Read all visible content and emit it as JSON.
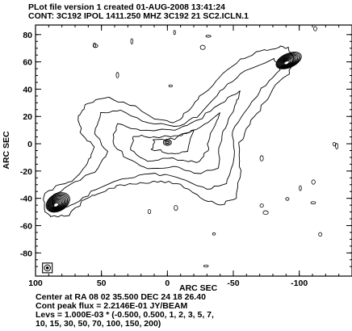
{
  "header": {
    "line1": "PLot file version 1  created 01-AUG-2008 13:41:24",
    "line2": "CONT: 3C192  IPOL  1411.250 MHZ  3C192 21 SC2.ICLN.1"
  },
  "footer": {
    "line1": "Center at RA 08 02 35.500  DEC 24 18 26.40",
    "line2": "Cont peak flux =  2.2146E-01 JY/BEAM",
    "line3": "Levs = 1.000E-03 * (-0.500, 0.500, 1, 2, 3, 5, 7,",
    "line4": "10, 15, 30, 50, 70, 100, 150, 200)"
  },
  "chart_data": {
    "type": "contour",
    "xlabel": "ARC SEC",
    "ylabel": "ARC SEC",
    "xlim": [
      100,
      -140
    ],
    "ylim": [
      -97,
      87
    ],
    "x_ticks": [
      100,
      50,
      0,
      -50,
      -100
    ],
    "y_ticks": [
      80,
      60,
      40,
      20,
      0,
      -20,
      -40,
      -60,
      -80
    ],
    "contour_levels_mJy": [
      -0.5,
      0.5,
      1,
      2,
      3,
      5,
      7,
      10,
      15,
      30,
      50,
      70,
      100,
      150,
      200
    ],
    "features": [
      {
        "label": "NE hotspot",
        "x": -92,
        "y": 61
      },
      {
        "label": "SW hotspot",
        "x": 83,
        "y": -43
      },
      {
        "label": "core",
        "x": 0,
        "y": 1
      }
    ],
    "beam": {
      "x": 91,
      "y": -91
    }
  }
}
